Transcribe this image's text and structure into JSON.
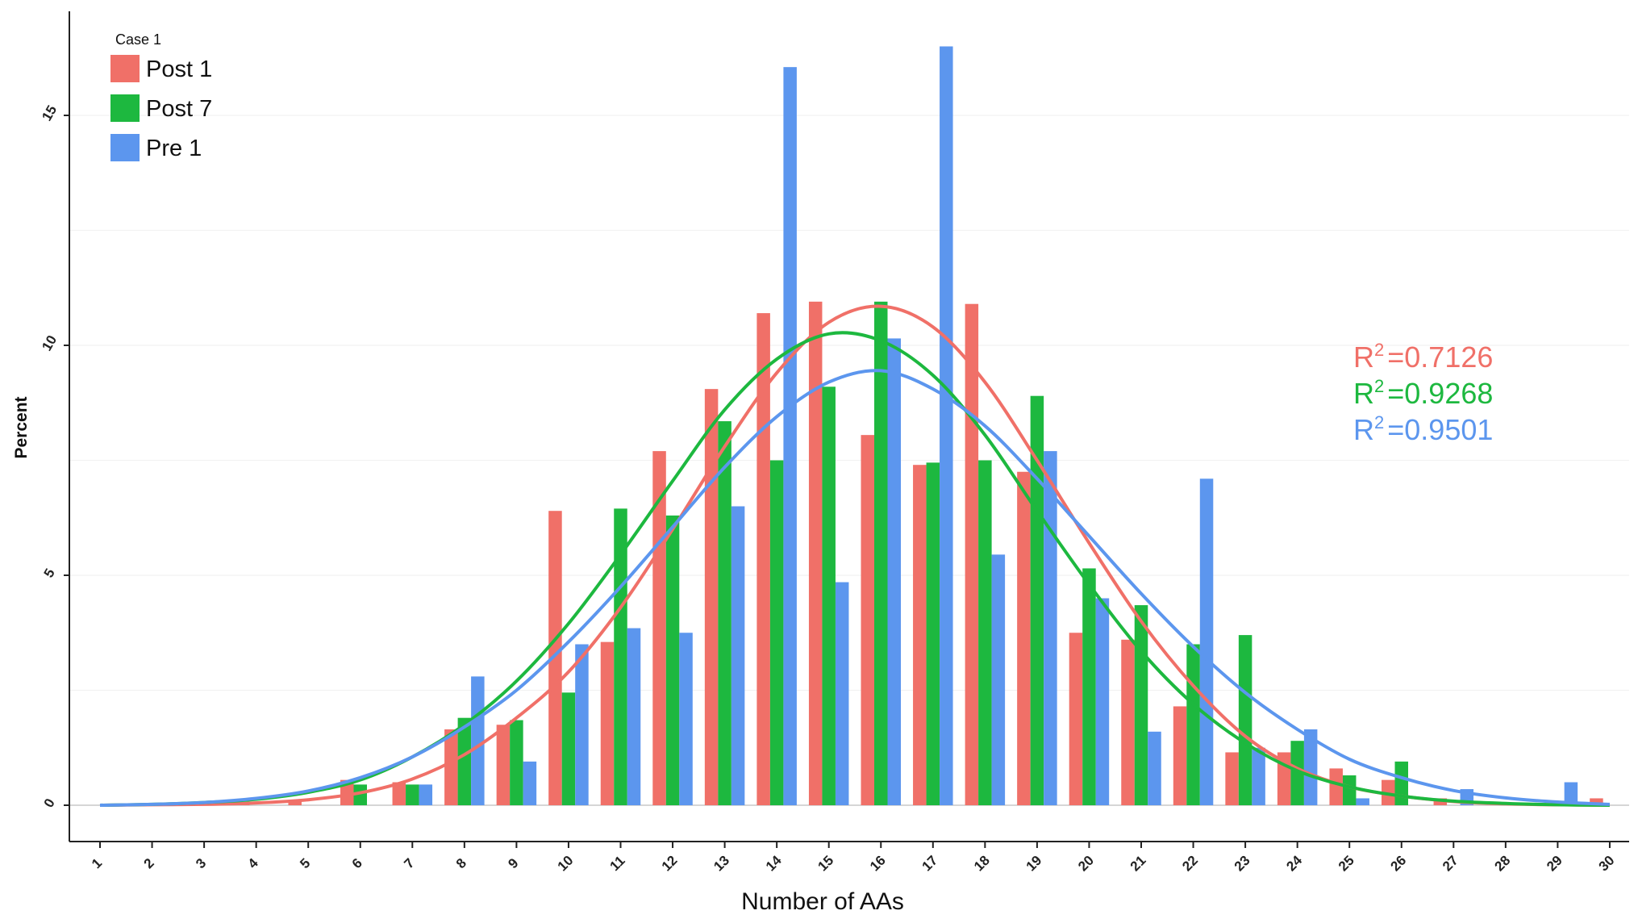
{
  "chart_data": {
    "type": "bar",
    "title": "",
    "xlabel": "Number of AAs",
    "ylabel": "Percent",
    "xlim": [
      1,
      30
    ],
    "ylim": [
      -0.6,
      17.2
    ],
    "yticks": [
      "0",
      "5",
      "10",
      "15"
    ],
    "categories": [
      "1",
      "2",
      "3",
      "4",
      "5",
      "6",
      "7",
      "8",
      "9",
      "10",
      "11",
      "12",
      "13",
      "14",
      "15",
      "16",
      "17",
      "18",
      "19",
      "20",
      "21",
      "22",
      "23",
      "24",
      "25",
      "26",
      "27",
      "28",
      "29",
      "30"
    ],
    "grid": "horizontal faint",
    "legend": {
      "title": "Case 1",
      "placement": "top-left"
    },
    "series": [
      {
        "name": "Post 1",
        "color": "#f07068",
        "values": [
          0.0,
          0.0,
          0.0,
          0.05,
          0.1,
          0.55,
          0.5,
          1.65,
          1.75,
          6.4,
          3.55,
          7.7,
          9.05,
          10.7,
          10.95,
          8.05,
          7.4,
          10.9,
          7.25,
          3.75,
          3.6,
          2.15,
          1.15,
          1.15,
          0.8,
          0.55,
          0.15,
          0.0,
          0.0,
          0.15
        ],
        "fit": [
          0.0,
          0.01,
          0.02,
          0.05,
          0.12,
          0.27,
          0.57,
          1.1,
          1.9,
          2.9,
          4.3,
          6.0,
          7.8,
          9.4,
          10.5,
          10.85,
          10.4,
          9.2,
          7.5,
          5.7,
          4.0,
          2.6,
          1.5,
          0.8,
          0.4,
          0.2,
          0.08,
          0.03,
          0.01,
          0.0
        ],
        "r2": "=0.7126"
      },
      {
        "name": "Post 7",
        "color": "#1db83f",
        "values": [
          0.0,
          0.0,
          0.0,
          0.0,
          0.0,
          0.45,
          0.45,
          1.9,
          1.85,
          2.45,
          6.45,
          6.3,
          8.35,
          7.5,
          9.1,
          10.95,
          7.45,
          7.5,
          8.9,
          5.15,
          4.35,
          3.5,
          3.7,
          1.4,
          0.65,
          0.95,
          0.0,
          0.0,
          0.0,
          0.0
        ],
        "fit": [
          0.0,
          0.02,
          0.06,
          0.13,
          0.28,
          0.55,
          1.05,
          1.75,
          2.7,
          3.95,
          5.45,
          7.05,
          8.6,
          9.7,
          10.25,
          10.1,
          9.35,
          8.05,
          6.4,
          4.8,
          3.35,
          2.2,
          1.35,
          0.75,
          0.4,
          0.2,
          0.09,
          0.04,
          0.01,
          0.0
        ],
        "r2": "=0.9268"
      },
      {
        "name": "Pre 1",
        "color": "#5c96ee",
        "values": [
          0.0,
          0.0,
          0.0,
          0.0,
          0.0,
          0.0,
          0.45,
          2.8,
          0.95,
          3.5,
          3.85,
          3.75,
          6.5,
          16.05,
          4.85,
          10.15,
          16.5,
          5.45,
          7.7,
          4.5,
          1.6,
          7.1,
          1.25,
          1.65,
          0.15,
          0.0,
          0.35,
          0.0,
          0.5,
          0.0
        ],
        "fit": [
          0.0,
          0.02,
          0.06,
          0.15,
          0.31,
          0.6,
          1.05,
          1.7,
          2.5,
          3.55,
          4.75,
          6.05,
          7.35,
          8.45,
          9.2,
          9.45,
          9.05,
          8.25,
          7.1,
          5.85,
          4.6,
          3.45,
          2.45,
          1.65,
          1.0,
          0.6,
          0.32,
          0.16,
          0.07,
          0.02
        ],
        "r2": "=0.9501"
      }
    ],
    "annotations": {
      "r2_prefix": "R",
      "r2_superscript": "2"
    }
  }
}
